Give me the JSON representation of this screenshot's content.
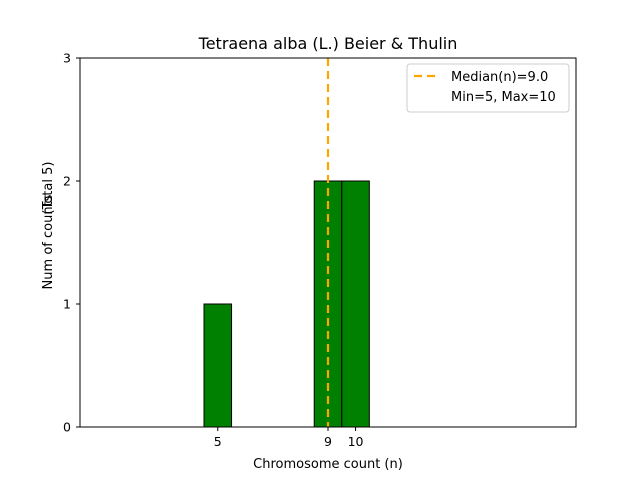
{
  "chart_data": {
    "type": "bar",
    "title": "Tetraena alba (L.) Beier & Thulin",
    "xlabel": "Chromosome count (n)",
    "ylabel": "Num of counts",
    "ylabel_note": "(Total 5)",
    "x": [
      5,
      9,
      10
    ],
    "values": [
      1,
      2,
      2
    ],
    "bar_width": 1,
    "xlim": [
      0,
      18
    ],
    "ylim": [
      0,
      3
    ],
    "xticks": [
      5,
      9,
      10
    ],
    "yticks": [
      0,
      1,
      2,
      3
    ],
    "grid": false,
    "colors": {
      "bar": "#008000",
      "edge": "#000000",
      "median": "#FFA500"
    },
    "median": {
      "value": 9.0,
      "label": "Median(n)=9.0"
    },
    "minmax_label": "Min=5, Max=10",
    "legend_position": "upper right"
  }
}
